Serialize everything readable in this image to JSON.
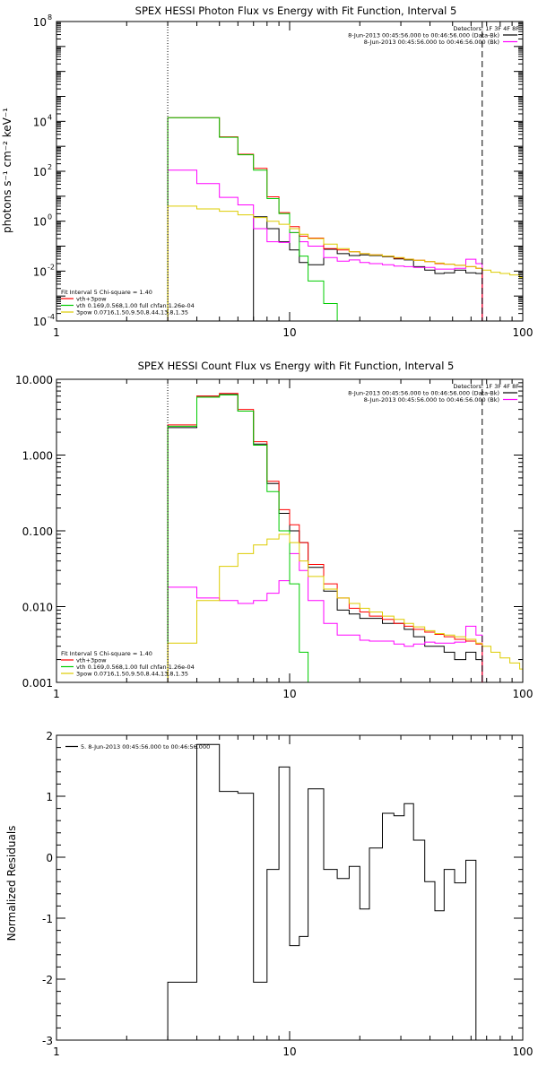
{
  "chart_data": [
    {
      "type": "line",
      "title": "SPEX HESSI Photon Flux vs Energy with Fit Function, Interval 5",
      "xlabel": "",
      "ylabel": "photons s⁻¹ cm⁻² keV⁻¹",
      "xscale": "log",
      "yscale": "log",
      "xlim": [
        1,
        100
      ],
      "ylim": [
        0.0001,
        100000000
      ],
      "x_ticks": [
        {
          "value": 1,
          "label": "1"
        },
        {
          "value": 10,
          "label": "10"
        },
        {
          "value": 100,
          "label": "100"
        }
      ],
      "y_ticks": [
        {
          "value": 0.0001,
          "base": "10",
          "exp": "-4"
        },
        {
          "value": 0.01,
          "base": "10",
          "exp": "-2"
        },
        {
          "value": 1,
          "base": "10",
          "exp": "0"
        },
        {
          "value": 100,
          "base": "10",
          "exp": "2"
        },
        {
          "value": 10000,
          "base": "10",
          "exp": "4"
        },
        {
          "value": 100000000,
          "base": "10",
          "exp": "8"
        }
      ],
      "legend_top": {
        "header": "Detectors: 1F 3F 4F 8F",
        "lines": [
          {
            "text": "8-Jun-2013 00:45:56.000 to 00:46:56.000 (Data-Bk)",
            "color": "#000000"
          },
          {
            "text": "8-Jun-2013 00:45:56.000 to 00:46:56.000 (Bk)",
            "color": "#ff00ff"
          }
        ]
      },
      "legend_bottom": {
        "header": "Fit Interval 5   Chi-square = 1.40",
        "lines": [
          {
            "text": "vth+3pow",
            "color": "#ff0000"
          },
          {
            "text": "vth 0.169,0.568,1.00  full chfan 1.26e-04",
            "color": "#00cc00"
          },
          {
            "text": "3pow 0.0716,1.50,9.50,8.44,13.8,1.35",
            "color": "#ddcc00"
          }
        ]
      },
      "vlines": [
        {
          "x": 3,
          "style": "dotted"
        },
        {
          "x": 67,
          "style": "dashed"
        }
      ],
      "series": [
        {
          "name": "Data-Bk",
          "color": "#000000",
          "edges": [
            3,
            4,
            5,
            6,
            7,
            8,
            9,
            10,
            11,
            12,
            14,
            16,
            18,
            20,
            22,
            25,
            28,
            31,
            34,
            38,
            42,
            46,
            51,
            57,
            63,
            67
          ],
          "values": [
            null,
            null,
            null,
            null,
            1.5,
            0.5,
            0.15,
            0.07,
            0.022,
            0.018,
            0.075,
            0.05,
            0.042,
            0.045,
            0.042,
            0.038,
            0.031,
            0.028,
            0.015,
            0.011,
            0.008,
            0.0085,
            0.011,
            0.0085,
            0.008
          ]
        },
        {
          "name": "Bk",
          "color": "#ff00ff",
          "edges": [
            3,
            4,
            5,
            6,
            7,
            8,
            9,
            10,
            11,
            12,
            14,
            16,
            18,
            20,
            22,
            25,
            28,
            31,
            34,
            38,
            42,
            46,
            51,
            57,
            63,
            67
          ],
          "values": [
            110,
            32,
            9,
            4.5,
            0.5,
            0.15,
            0.14,
            0.35,
            0.15,
            0.1,
            0.035,
            0.025,
            0.028,
            0.022,
            0.02,
            0.018,
            0.016,
            0.015,
            0.014,
            0.014,
            0.012,
            0.012,
            0.013,
            0.03,
            0.02
          ]
        },
        {
          "name": "vth+3pow",
          "color": "#ff0000",
          "edges": [
            3,
            4,
            5,
            6,
            7,
            8,
            9,
            10,
            11,
            12,
            14,
            16,
            18,
            20,
            22,
            25,
            28,
            31,
            34,
            38,
            42,
            46,
            51,
            57,
            63,
            67
          ],
          "values": [
            14000,
            14000,
            2400,
            480,
            130,
            9.5,
            2.2,
            0.6,
            0.25,
            0.21,
            0.08,
            0.07,
            0.06,
            0.05,
            0.045,
            0.04,
            0.033,
            0.03,
            0.027,
            0.024,
            0.02,
            0.019,
            0.017,
            0.015,
            0.013
          ]
        },
        {
          "name": "vth",
          "color": "#00cc00",
          "edges": [
            3,
            4,
            5,
            6,
            7,
            8,
            9,
            10,
            11,
            12,
            14,
            16
          ],
          "values": [
            14000,
            14000,
            2300,
            460,
            110,
            8,
            2,
            0.35,
            0.04,
            0.004,
            0.0005
          ]
        },
        {
          "name": "3pow",
          "color": "#ddcc00",
          "edges": [
            3,
            4,
            5,
            6,
            7,
            8,
            9,
            10,
            11,
            12,
            14,
            16,
            18,
            20,
            22,
            25,
            28,
            31,
            34,
            38,
            42,
            46,
            51,
            57,
            63,
            67,
            73,
            80,
            88,
            97,
            100
          ],
          "values": [
            4,
            3.1,
            2.5,
            1.8,
            1.4,
            1,
            0.75,
            0.5,
            0.3,
            0.2,
            0.12,
            0.08,
            0.06,
            0.05,
            0.045,
            0.04,
            0.035,
            0.03,
            0.027,
            0.024,
            0.021,
            0.019,
            0.017,
            0.015,
            0.013,
            0.011,
            0.009,
            0.008,
            0.007,
            0.0055
          ]
        }
      ]
    },
    {
      "type": "line",
      "title": "SPEX HESSI Count Flux vs Energy with Fit Function, Interval 5",
      "xlabel": "",
      "ylabel": "",
      "xscale": "log",
      "yscale": "log",
      "xlim": [
        1,
        100
      ],
      "ylim": [
        0.001,
        10
      ],
      "x_ticks": [
        {
          "value": 1,
          "label": "1"
        },
        {
          "value": 10,
          "label": "10"
        },
        {
          "value": 100,
          "label": "100"
        }
      ],
      "y_ticks": [
        {
          "value": 0.001,
          "label": "0.001"
        },
        {
          "value": 0.01,
          "label": "0.010"
        },
        {
          "value": 0.1,
          "label": "0.100"
        },
        {
          "value": 1,
          "label": "1.000"
        },
        {
          "value": 10,
          "label": "10.000"
        }
      ],
      "legend_top": {
        "header": "Detectors: 1F 3F 4F 8F",
        "lines": [
          {
            "text": "8-Jun-2013 00:45:56.000 to 00:46:56.000 (Data-Bk)",
            "color": "#000000"
          },
          {
            "text": "8-Jun-2013 00:45:56.000 to 00:46:56.000 (Bk)",
            "color": "#ff00ff"
          }
        ]
      },
      "legend_bottom": {
        "header": "Fit Interval 5   Chi-square = 1.40",
        "lines": [
          {
            "text": "vth+3pow",
            "color": "#ff0000"
          },
          {
            "text": "vth 0.169,0.568,1.00  full chfan 1.26e-04",
            "color": "#00cc00"
          },
          {
            "text": "3pow 0.0716,1.50,9.50,8.44,13.8,1.35",
            "color": "#ddcc00"
          }
        ]
      },
      "vlines": [
        {
          "x": 3,
          "style": "dotted"
        },
        {
          "x": 67,
          "style": "dashed"
        }
      ],
      "series": [
        {
          "name": "Data-Bk",
          "color": "#000000",
          "edges": [
            3,
            4,
            5,
            6,
            7,
            8,
            9,
            10,
            11,
            12,
            14,
            16,
            18,
            20,
            22,
            25,
            28,
            31,
            34,
            38,
            42,
            46,
            51,
            57,
            63,
            67
          ],
          "values": [
            2.3,
            6,
            6.3,
            3.8,
            1.4,
            0.42,
            0.17,
            0.1,
            0.07,
            0.033,
            0.016,
            0.009,
            0.008,
            0.007,
            0.007,
            0.006,
            0.006,
            0.005,
            0.004,
            0.003,
            0.003,
            0.0025,
            0.002,
            0.0025,
            0.002
          ]
        },
        {
          "name": "Bk",
          "color": "#ff00ff",
          "edges": [
            3,
            4,
            5,
            6,
            7,
            8,
            9,
            10,
            11,
            12,
            14,
            16,
            18,
            20,
            22,
            25,
            28,
            31,
            34,
            38,
            42,
            46,
            51,
            57,
            63,
            67
          ],
          "values": [
            0.018,
            0.013,
            0.012,
            0.011,
            0.012,
            0.015,
            0.022,
            0.05,
            0.03,
            0.012,
            0.006,
            0.0042,
            0.0042,
            0.0036,
            0.0035,
            0.0035,
            0.0032,
            0.003,
            0.0032,
            0.0034,
            0.0033,
            0.0033,
            0.0034,
            0.0055,
            0.0042
          ]
        },
        {
          "name": "vth+3pow",
          "color": "#ff0000",
          "edges": [
            3,
            4,
            5,
            6,
            7,
            8,
            9,
            10,
            11,
            12,
            14,
            16,
            18,
            20,
            22,
            25,
            28,
            31,
            34,
            38,
            42,
            46,
            51,
            57,
            63,
            67
          ],
          "values": [
            2.5,
            6,
            6.5,
            4,
            1.5,
            0.45,
            0.19,
            0.12,
            0.07,
            0.036,
            0.02,
            0.013,
            0.0095,
            0.0085,
            0.0075,
            0.0068,
            0.006,
            0.0055,
            0.005,
            0.0046,
            0.0043,
            0.004,
            0.0037,
            0.0035,
            0.0032
          ]
        },
        {
          "name": "vth",
          "color": "#00cc00",
          "edges": [
            3,
            4,
            5,
            6,
            7,
            8,
            9,
            10,
            11,
            12
          ],
          "values": [
            2.4,
            5.8,
            6.2,
            3.8,
            1.35,
            0.33,
            0.1,
            0.02,
            0.0025
          ]
        },
        {
          "name": "3pow",
          "color": "#ddcc00",
          "edges": [
            3,
            4,
            5,
            6,
            7,
            8,
            9,
            10,
            11,
            12,
            14,
            16,
            18,
            20,
            22,
            25,
            28,
            31,
            34,
            38,
            42,
            46,
            51,
            57,
            63,
            67,
            73,
            80,
            88,
            97,
            100
          ],
          "values": [
            0.0033,
            0.012,
            0.034,
            0.05,
            0.065,
            0.078,
            0.09,
            0.07,
            0.04,
            0.025,
            0.017,
            0.013,
            0.011,
            0.0095,
            0.0085,
            0.0075,
            0.0068,
            0.006,
            0.0054,
            0.0048,
            0.0044,
            0.0042,
            0.004,
            0.0037,
            0.0033,
            0.003,
            0.0025,
            0.0021,
            0.0018,
            0.0015
          ]
        }
      ]
    },
    {
      "type": "line",
      "title": "",
      "xlabel": "",
      "ylabel": "Normalized Residuals",
      "xscale": "log",
      "yscale": "linear",
      "xlim": [
        1,
        100
      ],
      "ylim": [
        -3,
        2
      ],
      "x_ticks": [
        {
          "value": 1,
          "label": "1"
        },
        {
          "value": 10,
          "label": "10"
        },
        {
          "value": 100,
          "label": "100"
        }
      ],
      "y_ticks": [
        {
          "value": -3,
          "label": "-3"
        },
        {
          "value": -2,
          "label": "-2"
        },
        {
          "value": -1,
          "label": "-1"
        },
        {
          "value": 0,
          "label": "0"
        },
        {
          "value": 1,
          "label": "1"
        },
        {
          "value": 2,
          "label": "2"
        }
      ],
      "legend_top_left": {
        "lines": [
          {
            "text": "5. 8-Jun-2013 00:45:56.000 to 00:46:56.000",
            "color": "#000000"
          }
        ]
      },
      "series": [
        {
          "name": "Residuals",
          "color": "#000000",
          "edges": [
            3,
            4,
            5,
            6,
            7,
            8,
            9,
            10,
            11,
            12,
            14,
            16,
            18,
            20,
            22,
            25,
            28,
            31,
            34,
            38,
            42,
            46,
            51,
            57,
            63,
            67
          ],
          "values": [
            -2.05,
            1.85,
            1.08,
            1.05,
            -2.05,
            -0.2,
            1.48,
            -1.45,
            -1.3,
            1.12,
            -0.2,
            -0.35,
            -0.15,
            -0.85,
            0.15,
            0.72,
            0.68,
            0.88,
            0.28,
            -0.4,
            -0.88,
            -0.2,
            -0.42,
            -0.05,
            -3
          ]
        }
      ]
    }
  ]
}
